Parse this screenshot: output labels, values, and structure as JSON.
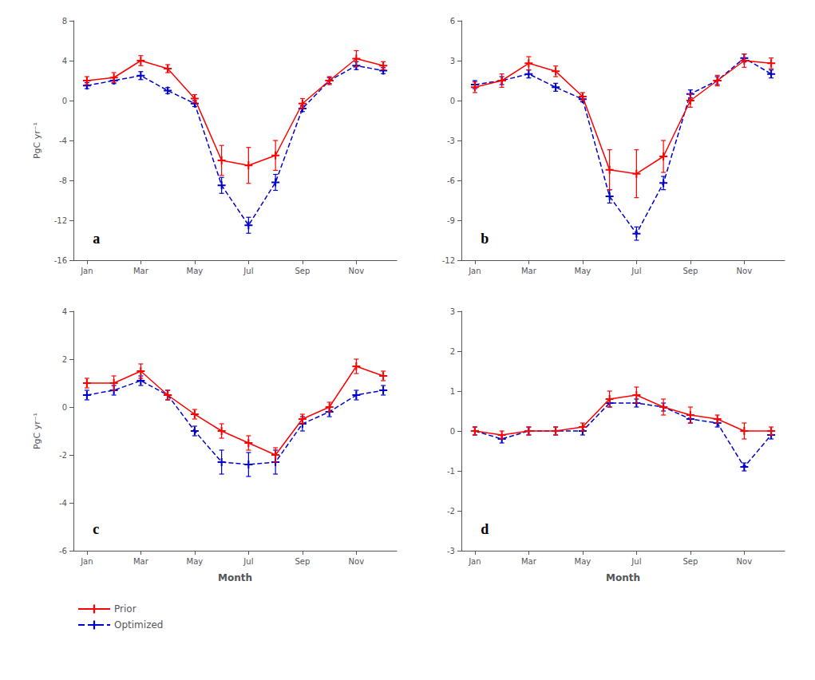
{
  "chart_data": [
    {
      "type": "line",
      "annotations": [
        "a"
      ],
      "ylabel": "PgC yr⁻¹",
      "x": [
        1,
        2,
        3,
        4,
        5,
        6,
        7,
        8,
        9,
        10,
        11,
        12
      ],
      "xlim": [
        0.5,
        12.5
      ],
      "xticks": [
        {
          "value": 1,
          "label": "Jan"
        },
        {
          "value": 3,
          "label": "Mar"
        },
        {
          "value": 5,
          "label": "May"
        },
        {
          "value": 7,
          "label": "Jul"
        },
        {
          "value": 9,
          "label": "Sep"
        },
        {
          "value": 11,
          "label": "Nov"
        }
      ],
      "ylim": [
        -16,
        8
      ],
      "yticks": [
        -16,
        -12,
        -8,
        -4,
        0,
        4,
        8
      ],
      "grid": false,
      "series": [
        {
          "name": "Prior",
          "color": "#ff0000",
          "line_style": "solid",
          "marker": "+",
          "values": [
            2.0,
            2.3,
            4.0,
            3.2,
            0.2,
            -6.0,
            -6.5,
            -5.5,
            -0.3,
            2.0,
            4.2,
            3.5
          ],
          "errors": [
            0.4,
            0.5,
            0.5,
            0.4,
            0.4,
            1.5,
            1.8,
            1.5,
            0.5,
            0.4,
            0.8,
            0.4
          ]
        },
        {
          "name": "Optimized",
          "color": "#0000cc",
          "line_style": "dashed",
          "marker": "+",
          "values": [
            1.5,
            2.0,
            2.5,
            1.0,
            -0.3,
            -8.5,
            -12.5,
            -8.2,
            -0.8,
            2.0,
            3.5,
            3.0
          ],
          "errors": [
            0.3,
            0.3,
            0.4,
            0.3,
            0.3,
            0.8,
            0.8,
            0.8,
            0.3,
            0.3,
            0.4,
            0.3
          ]
        }
      ]
    },
    {
      "type": "line",
      "annotations": [
        "b"
      ],
      "x": [
        1,
        2,
        3,
        4,
        5,
        6,
        7,
        8,
        9,
        10,
        11,
        12
      ],
      "xlim": [
        0.5,
        12.5
      ],
      "xticks": [
        {
          "value": 1,
          "label": "Jan"
        },
        {
          "value": 3,
          "label": "Mar"
        },
        {
          "value": 5,
          "label": "May"
        },
        {
          "value": 7,
          "label": "Jul"
        },
        {
          "value": 9,
          "label": "Sep"
        },
        {
          "value": 11,
          "label": "Nov"
        }
      ],
      "ylim": [
        -12,
        6
      ],
      "yticks": [
        -12,
        -9,
        -6,
        -3,
        0,
        3,
        6
      ],
      "grid": false,
      "series": [
        {
          "name": "Prior",
          "color": "#ff0000",
          "line_style": "solid",
          "marker": "+",
          "values": [
            1.0,
            1.5,
            2.8,
            2.2,
            0.3,
            -5.2,
            -5.5,
            -4.2,
            0.0,
            1.5,
            3.0,
            2.8
          ],
          "errors": [
            0.4,
            0.5,
            0.5,
            0.4,
            0.3,
            1.5,
            1.8,
            1.2,
            0.5,
            0.4,
            0.5,
            0.4
          ]
        },
        {
          "name": "Optimized",
          "color": "#0000cc",
          "line_style": "dashed",
          "marker": "+",
          "values": [
            1.2,
            1.5,
            2.0,
            1.0,
            0.1,
            -7.2,
            -10.0,
            -6.2,
            0.5,
            1.5,
            3.2,
            2.0
          ],
          "errors": [
            0.3,
            0.3,
            0.3,
            0.3,
            0.2,
            0.5,
            0.5,
            0.5,
            0.3,
            0.3,
            0.3,
            0.3
          ]
        }
      ]
    },
    {
      "type": "line",
      "annotations": [
        "c"
      ],
      "ylabel": "PgC yr⁻¹",
      "xlabel": "Month",
      "legend": "bottom",
      "x": [
        1,
        2,
        3,
        4,
        5,
        6,
        7,
        8,
        9,
        10,
        11,
        12
      ],
      "xlim": [
        0.5,
        12.5
      ],
      "xticks": [
        {
          "value": 1,
          "label": "Jan"
        },
        {
          "value": 3,
          "label": "Mar"
        },
        {
          "value": 5,
          "label": "May"
        },
        {
          "value": 7,
          "label": "Jul"
        },
        {
          "value": 9,
          "label": "Sep"
        },
        {
          "value": 11,
          "label": "Nov"
        }
      ],
      "ylim": [
        -6.0,
        4.0
      ],
      "yticks": [
        -6.0,
        -4.0,
        -2.0,
        0.0,
        2.0,
        4.0
      ],
      "grid": false,
      "series": [
        {
          "name": "Prior",
          "color": "#ff0000",
          "line_style": "solid",
          "marker": "+",
          "values": [
            1.0,
            1.0,
            1.5,
            0.5,
            -0.3,
            -1.0,
            -1.5,
            -2.0,
            -0.5,
            0.0,
            1.7,
            1.3
          ],
          "errors": [
            0.2,
            0.3,
            0.3,
            0.2,
            0.2,
            0.3,
            0.3,
            0.3,
            0.2,
            0.2,
            0.3,
            0.2
          ]
        },
        {
          "name": "Optimized",
          "color": "#0000cc",
          "line_style": "dashed",
          "marker": "+",
          "values": [
            0.5,
            0.7,
            1.1,
            0.5,
            -1.0,
            -2.3,
            -2.4,
            -2.3,
            -0.7,
            -0.2,
            0.5,
            0.7
          ],
          "errors": [
            0.2,
            0.2,
            0.2,
            0.2,
            0.2,
            0.5,
            0.5,
            0.5,
            0.3,
            0.2,
            0.2,
            0.2
          ]
        }
      ]
    },
    {
      "type": "line",
      "annotations": [
        "d"
      ],
      "xlabel": "Month",
      "x": [
        1,
        2,
        3,
        4,
        5,
        6,
        7,
        8,
        9,
        10,
        11,
        12
      ],
      "xlim": [
        0.5,
        12.5
      ],
      "xticks": [
        {
          "value": 1,
          "label": "Jan"
        },
        {
          "value": 3,
          "label": "Mar"
        },
        {
          "value": 5,
          "label": "May"
        },
        {
          "value": 7,
          "label": "Jul"
        },
        {
          "value": 9,
          "label": "Sep"
        },
        {
          "value": 11,
          "label": "Nov"
        }
      ],
      "ylim": [
        -3.0,
        3.0
      ],
      "yticks": [
        -3.0,
        -2.0,
        -1.0,
        0.0,
        1.0,
        2.0,
        3.0
      ],
      "grid": false,
      "series": [
        {
          "name": "Prior",
          "color": "#ff0000",
          "line_style": "solid",
          "marker": "+",
          "values": [
            0.0,
            -0.1,
            0.0,
            0.0,
            0.1,
            0.8,
            0.9,
            0.6,
            0.4,
            0.3,
            0.0,
            0.0
          ],
          "errors": [
            0.1,
            0.1,
            0.1,
            0.1,
            0.1,
            0.2,
            0.2,
            0.2,
            0.2,
            0.1,
            0.2,
            0.1
          ]
        },
        {
          "name": "Optimized",
          "color": "#0000cc",
          "line_style": "dashed",
          "marker": "+",
          "values": [
            0.0,
            -0.2,
            0.0,
            0.0,
            0.0,
            0.7,
            0.7,
            0.6,
            0.3,
            0.2,
            -0.9,
            -0.1
          ],
          "errors": [
            0.1,
            0.1,
            0.1,
            0.1,
            0.1,
            0.1,
            0.1,
            0.1,
            0.1,
            0.1,
            0.1,
            0.1
          ]
        }
      ]
    }
  ]
}
